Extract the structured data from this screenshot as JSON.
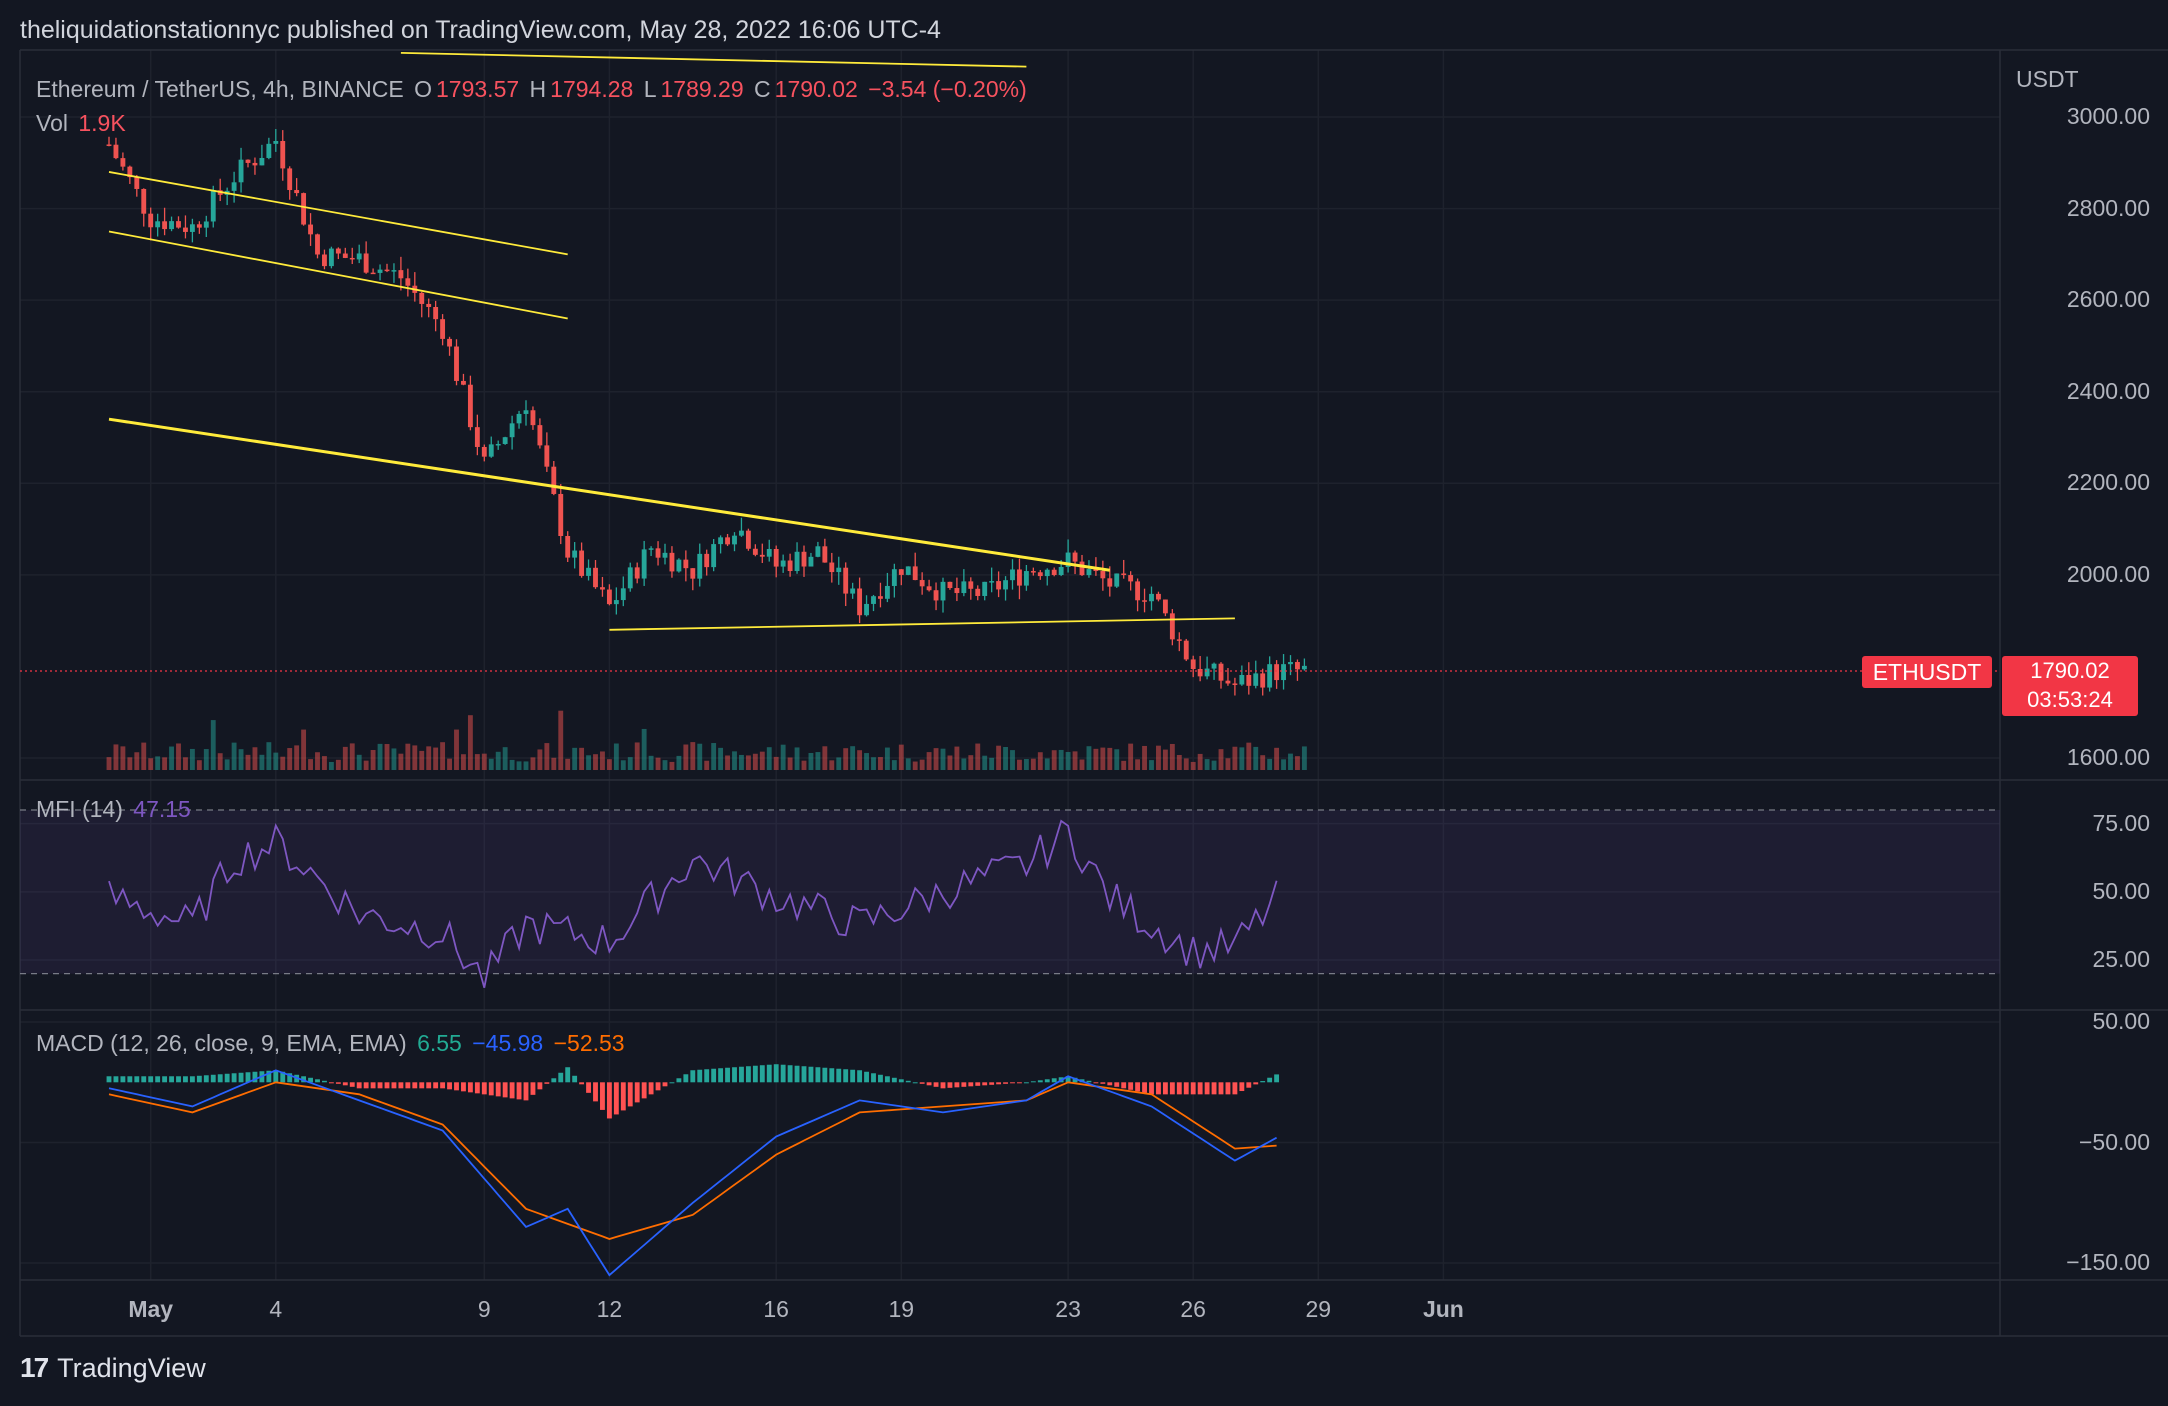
{
  "header": {
    "publisher_line": "theliquidationstationnyc published on TradingView.com, May 28, 2022 16:06 UTC-4"
  },
  "legend": {
    "symbol": "Ethereum / TetherUS, 4h, BINANCE",
    "o_label": "O",
    "o_value": "1793.57",
    "h_label": "H",
    "h_value": "1794.28",
    "l_label": "L",
    "l_value": "1789.29",
    "c_label": "C",
    "c_value": "1790.02",
    "change": "−3.54 (−0.20%)",
    "vol_label": "Vol",
    "vol_value": "1.9K"
  },
  "mfi_legend": {
    "label": "MFI (14)",
    "value": "47.15"
  },
  "macd_legend": {
    "label": "MACD (12, 26, close, 9, EMA, EMA)",
    "hist": "6.55",
    "macd": "−45.98",
    "signal": "−52.53"
  },
  "price_axis": {
    "currency": "USDT",
    "ticks": [
      "3000.00",
      "2800.00",
      "2600.00",
      "2400.00",
      "2200.00",
      "2000.00",
      "1600.00"
    ]
  },
  "mfi_axis": {
    "ticks": [
      "75.00",
      "50.00",
      "25.00"
    ]
  },
  "macd_axis": {
    "ticks": [
      "50.00",
      "−50.00",
      "−150.00"
    ]
  },
  "price_tag": {
    "symbol": "ETHUSDT",
    "price": "1790.02",
    "countdown": "03:53:24"
  },
  "x_axis": {
    "ticks": [
      "May",
      "4",
      "9",
      "12",
      "16",
      "19",
      "23",
      "26",
      "29",
      "Jun"
    ]
  },
  "footer": {
    "logo": "17",
    "brand": "TradingView"
  },
  "colors": {
    "up": "#26a69a",
    "down": "#ef5350",
    "trendline": "#ffeb3b",
    "mfi": "#7e57c2",
    "macd": "#2962ff",
    "signal": "#ff6d00",
    "background": "#131722"
  },
  "chart_data": {
    "type": "candlestick",
    "title": "Ethereum / TetherUS, 4h, BINANCE",
    "interval": "4h",
    "x_range": [
      "2022-04-30",
      "2022-06-01"
    ],
    "price_range": [
      1600,
      3000
    ],
    "close_path": [
      [
        "2022-04-30",
        2940
      ],
      [
        "2022-05-01",
        2780
      ],
      [
        "2022-05-02",
        2760
      ],
      [
        "2022-05-03",
        2870
      ],
      [
        "2022-05-04",
        2950
      ],
      [
        "2022-05-05",
        2700
      ],
      [
        "2022-05-06",
        2690
      ],
      [
        "2022-05-07",
        2650
      ],
      [
        "2022-05-08",
        2540
      ],
      [
        "2022-05-09",
        2240
      ],
      [
        "2022-05-10",
        2380
      ],
      [
        "2022-05-11",
        2050
      ],
      [
        "2022-05-12",
        1930
      ],
      [
        "2022-05-13",
        2060
      ],
      [
        "2022-05-14",
        2010
      ],
      [
        "2022-05-15",
        2110
      ],
      [
        "2022-05-16",
        2020
      ],
      [
        "2022-05-17",
        2050
      ],
      [
        "2022-05-18",
        1930
      ],
      [
        "2022-05-19",
        2020
      ],
      [
        "2022-05-20",
        1960
      ],
      [
        "2022-05-21",
        1960
      ],
      [
        "2022-05-22",
        2010
      ],
      [
        "2022-05-23",
        2030
      ],
      [
        "2022-05-24",
        1980
      ],
      [
        "2022-05-25",
        1960
      ],
      [
        "2022-05-26",
        1800
      ],
      [
        "2022-05-27",
        1760
      ],
      [
        "2022-05-28",
        1790
      ]
    ],
    "last_close": 1790.02,
    "mfi_range": [
      0,
      100
    ],
    "mfi_levels": [
      20,
      80
    ],
    "mfi_path": [
      [
        "2022-04-30",
        48
      ],
      [
        "2022-05-02",
        38
      ],
      [
        "2022-05-03",
        62
      ],
      [
        "2022-05-04",
        68
      ],
      [
        "2022-05-06",
        42
      ],
      [
        "2022-05-08",
        35
      ],
      [
        "2022-05-09",
        18
      ],
      [
        "2022-05-10",
        38
      ],
      [
        "2022-05-12",
        32
      ],
      [
        "2022-05-14",
        62
      ],
      [
        "2022-05-16",
        48
      ],
      [
        "2022-05-18",
        38
      ],
      [
        "2022-05-20",
        50
      ],
      [
        "2022-05-22",
        60
      ],
      [
        "2022-05-23",
        72
      ],
      [
        "2022-05-24",
        48
      ],
      [
        "2022-05-26",
        28
      ],
      [
        "2022-05-27",
        30
      ],
      [
        "2022-05-28",
        47.15
      ]
    ],
    "macd_range": [
      -180,
      60
    ],
    "macd_path": [
      [
        "2022-04-30",
        -5
      ],
      [
        "2022-05-02",
        -20
      ],
      [
        "2022-05-04",
        10
      ],
      [
        "2022-05-06",
        -15
      ],
      [
        "2022-05-08",
        -40
      ],
      [
        "2022-05-10",
        -120
      ],
      [
        "2022-05-11",
        -105
      ],
      [
        "2022-05-12",
        -160
      ],
      [
        "2022-05-14",
        -100
      ],
      [
        "2022-05-16",
        -45
      ],
      [
        "2022-05-18",
        -15
      ],
      [
        "2022-05-20",
        -25
      ],
      [
        "2022-05-22",
        -15
      ],
      [
        "2022-05-23",
        5
      ],
      [
        "2022-05-25",
        -20
      ],
      [
        "2022-05-27",
        -65
      ],
      [
        "2022-05-28",
        -45.98
      ]
    ],
    "signal_path": [
      [
        "2022-04-30",
        -10
      ],
      [
        "2022-05-02",
        -25
      ],
      [
        "2022-05-04",
        0
      ],
      [
        "2022-05-06",
        -10
      ],
      [
        "2022-05-08",
        -35
      ],
      [
        "2022-05-10",
        -105
      ],
      [
        "2022-05-12",
        -130
      ],
      [
        "2022-05-14",
        -110
      ],
      [
        "2022-05-16",
        -60
      ],
      [
        "2022-05-18",
        -25
      ],
      [
        "2022-05-20",
        -20
      ],
      [
        "2022-05-22",
        -15
      ],
      [
        "2022-05-23",
        0
      ],
      [
        "2022-05-25",
        -10
      ],
      [
        "2022-05-27",
        -55
      ],
      [
        "2022-05-28",
        -52.53
      ]
    ],
    "trendlines": [
      {
        "from": [
          "2022-04-30",
          2880
        ],
        "to": [
          "2022-05-11",
          2700
        ]
      },
      {
        "from": [
          "2022-04-30",
          2750
        ],
        "to": [
          "2022-05-11",
          2560
        ]
      },
      {
        "from": [
          "2022-04-30",
          2340
        ],
        "to": [
          "2022-05-24",
          2010
        ]
      },
      {
        "from": [
          "2022-05-12",
          1880
        ],
        "to": [
          "2022-05-27",
          1905
        ]
      },
      {
        "from": [
          "2022-05-07",
          3140
        ],
        "to": [
          "2022-05-22",
          3110
        ]
      }
    ]
  }
}
